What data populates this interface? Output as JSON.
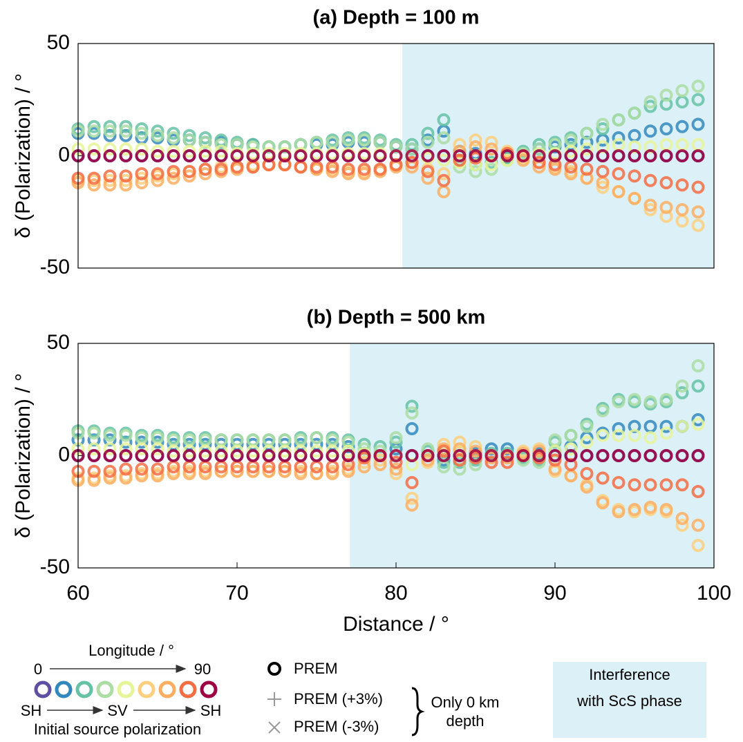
{
  "chart_data": [
    {
      "type": "scatter",
      "title": "(a) Depth = 100 m",
      "ylabel": "δ (Polarization) / °",
      "xlim": [
        60,
        100
      ],
      "ylim": [
        -50,
        50
      ],
      "yticks": [
        -50,
        0,
        50
      ],
      "shade": [
        80.4,
        100
      ],
      "shade_color": "#dcf1f7",
      "x": [
        60,
        61,
        62,
        63,
        64,
        65,
        66,
        67,
        68,
        69,
        70,
        71,
        72,
        73,
        74,
        75,
        76,
        77,
        78,
        79,
        80,
        81,
        82,
        83,
        84,
        85,
        86,
        87,
        88,
        89,
        90,
        91,
        92,
        93,
        94,
        95,
        96,
        97,
        98,
        99
      ],
      "series": [
        {
          "color": "#5e4fa2",
          "values": [
            0,
            0,
            0,
            0,
            0,
            0,
            0,
            0,
            0,
            0,
            0,
            0,
            0,
            0,
            0,
            0,
            0,
            0,
            0,
            0,
            0,
            0,
            0,
            0,
            0,
            0,
            0,
            0,
            0,
            0,
            0,
            0,
            0,
            0,
            0,
            0,
            0,
            0,
            0,
            0
          ]
        },
        {
          "color": "#3288bd",
          "values": [
            10,
            10,
            9,
            9,
            8,
            8,
            7,
            7,
            6,
            6,
            5,
            5,
            4,
            4,
            5,
            5,
            5,
            6,
            6,
            6,
            4,
            3,
            7,
            11,
            2,
            1,
            0,
            -1,
            0,
            3,
            4,
            5,
            6,
            7,
            8,
            9,
            11,
            12,
            13,
            14
          ]
        },
        {
          "color": "#66c2a5",
          "values": [
            12,
            13,
            13,
            13,
            12,
            11,
            10,
            9,
            8,
            7,
            6,
            5,
            4,
            4,
            5,
            6,
            7,
            8,
            8,
            7,
            5,
            5,
            10,
            16,
            -2,
            -4,
            -3,
            -1,
            2,
            5,
            6,
            8,
            10,
            12,
            16,
            19,
            22,
            23,
            24,
            25
          ]
        },
        {
          "color": "#abdda4",
          "values": [
            11,
            11,
            11,
            11,
            10,
            9,
            8,
            7,
            6,
            5,
            5,
            4,
            4,
            4,
            5,
            6,
            6,
            7,
            7,
            6,
            4,
            3,
            6,
            8,
            -5,
            -7,
            -6,
            -2,
            1,
            3,
            5,
            7,
            10,
            14,
            16,
            19,
            24,
            27,
            29,
            31
          ]
        },
        {
          "color": "#e6f598",
          "values": [
            3,
            3,
            3,
            3,
            3,
            2,
            2,
            2,
            2,
            2,
            1,
            1,
            1,
            1,
            1,
            1,
            1,
            1,
            1,
            1,
            0,
            0,
            -1,
            -2,
            -3,
            -4,
            -4,
            -2,
            0,
            1,
            1,
            2,
            3,
            4,
            5,
            4,
            4,
            5,
            5,
            5
          ]
        },
        {
          "color": "#fdcf7f",
          "values": [
            -11,
            -11,
            -11,
            -11,
            -10,
            -9,
            -8,
            -7,
            -6,
            -5,
            -5,
            -4,
            -4,
            -4,
            -5,
            -6,
            -6,
            -7,
            -7,
            -6,
            -4,
            -3,
            -6,
            -8,
            5,
            7,
            6,
            2,
            -1,
            -3,
            -5,
            -7,
            -10,
            -14,
            -16,
            -19,
            -24,
            -27,
            -29,
            -31
          ]
        },
        {
          "color": "#fdae61",
          "values": [
            -12,
            -13,
            -13,
            -13,
            -12,
            -11,
            -10,
            -9,
            -8,
            -7,
            -6,
            -5,
            -4,
            -4,
            -5,
            -6,
            -7,
            -8,
            -8,
            -7,
            -5,
            -5,
            -10,
            -16,
            2,
            4,
            3,
            1,
            -2,
            -5,
            -6,
            -8,
            -10,
            -12,
            -16,
            -19,
            -22,
            -23,
            -24,
            -25
          ]
        },
        {
          "color": "#f46d43",
          "values": [
            -10,
            -10,
            -9,
            -9,
            -8,
            -8,
            -7,
            -7,
            -6,
            -6,
            -5,
            -5,
            -4,
            -4,
            -5,
            -5,
            -5,
            -6,
            -6,
            -6,
            -4,
            -3,
            -7,
            -11,
            -2,
            -1,
            0,
            1,
            0,
            -3,
            -4,
            -5,
            -6,
            -7,
            -8,
            -9,
            -11,
            -12,
            -13,
            -14
          ]
        },
        {
          "color": "#9e0142",
          "values": [
            0,
            0,
            0,
            0,
            0,
            0,
            0,
            0,
            0,
            0,
            0,
            0,
            0,
            0,
            0,
            0,
            0,
            0,
            0,
            0,
            0,
            0,
            0,
            0,
            0,
            0,
            0,
            0,
            0,
            0,
            0,
            0,
            0,
            0,
            0,
            0,
            0,
            0,
            0,
            0
          ]
        }
      ]
    },
    {
      "type": "scatter",
      "title": "(b) Depth = 500 km",
      "ylabel": "δ (Polarization) / °",
      "xlabel": "Distance / °",
      "xlim": [
        60,
        100
      ],
      "ylim": [
        -50,
        50
      ],
      "xticks": [
        60,
        70,
        80,
        90,
        100
      ],
      "yticks": [
        -50,
        0,
        50
      ],
      "shade": [
        77.1,
        100
      ],
      "shade_color": "#dcf1f7",
      "x": [
        60,
        61,
        62,
        63,
        64,
        65,
        66,
        67,
        68,
        69,
        70,
        71,
        72,
        73,
        74,
        75,
        76,
        77,
        78,
        79,
        80,
        81,
        82,
        83,
        84,
        85,
        86,
        87,
        88,
        89,
        90,
        91,
        92,
        93,
        94,
        95,
        96,
        97,
        98,
        99
      ],
      "series": [
        {
          "color": "#5e4fa2",
          "values": [
            0,
            0,
            0,
            0,
            0,
            0,
            0,
            0,
            0,
            0,
            0,
            0,
            0,
            0,
            0,
            0,
            0,
            0,
            0,
            0,
            0,
            0,
            0,
            0,
            0,
            0,
            0,
            0,
            0,
            0,
            0,
            0,
            0,
            0,
            0,
            0,
            0,
            0,
            0,
            0
          ]
        },
        {
          "color": "#3288bd",
          "values": [
            7,
            7,
            7,
            6,
            6,
            6,
            5,
            5,
            5,
            5,
            5,
            5,
            5,
            5,
            5,
            5,
            5,
            4,
            1,
            0,
            3,
            12,
            0,
            -2,
            2,
            1,
            3,
            3,
            0,
            1,
            2,
            4,
            8,
            10,
            12,
            13,
            13,
            13,
            13,
            16
          ]
        },
        {
          "color": "#66c2a5",
          "values": [
            11,
            11,
            10,
            10,
            9,
            9,
            8,
            8,
            8,
            7,
            7,
            7,
            7,
            7,
            8,
            8,
            8,
            7,
            5,
            4,
            6,
            22,
            2,
            -3,
            -3,
            -2,
            1,
            1,
            -1,
            -2,
            6,
            9,
            14,
            21,
            25,
            24,
            23,
            24,
            28,
            31
          ]
        },
        {
          "color": "#abdda4",
          "values": [
            10,
            10,
            9,
            9,
            8,
            8,
            7,
            7,
            7,
            7,
            7,
            7,
            7,
            7,
            7,
            8,
            7,
            6,
            3,
            2,
            8,
            19,
            3,
            -5,
            -6,
            -4,
            0,
            0,
            -2,
            -3,
            7,
            9,
            13,
            20,
            24,
            25,
            24,
            25,
            31,
            40
          ]
        },
        {
          "color": "#e6f598",
          "values": [
            3,
            3,
            3,
            3,
            3,
            3,
            2,
            2,
            2,
            2,
            2,
            2,
            2,
            2,
            2,
            2,
            2,
            2,
            1,
            0,
            0,
            -4,
            0,
            2,
            2,
            0,
            0,
            0,
            0,
            0,
            2,
            3,
            6,
            9,
            9,
            9,
            8,
            10,
            13,
            14
          ]
        },
        {
          "color": "#fdcf7f",
          "values": [
            -10,
            -10,
            -9,
            -9,
            -8,
            -8,
            -7,
            -7,
            -7,
            -7,
            -7,
            -7,
            -7,
            -7,
            -7,
            -8,
            -7,
            -6,
            -3,
            -2,
            -8,
            -19,
            -3,
            5,
            6,
            4,
            0,
            0,
            2,
            3,
            -7,
            -9,
            -13,
            -20,
            -24,
            -25,
            -24,
            -25,
            -31,
            -40
          ]
        },
        {
          "color": "#fdae61",
          "values": [
            -11,
            -11,
            -10,
            -10,
            -9,
            -9,
            -8,
            -8,
            -8,
            -7,
            -7,
            -7,
            -7,
            -7,
            -8,
            -8,
            -8,
            -7,
            -5,
            -4,
            -6,
            -22,
            -2,
            3,
            3,
            2,
            -1,
            -1,
            1,
            2,
            -6,
            -9,
            -14,
            -21,
            -25,
            -24,
            -23,
            -24,
            -28,
            -31
          ]
        },
        {
          "color": "#f46d43",
          "values": [
            -7,
            -7,
            -7,
            -6,
            -6,
            -6,
            -5,
            -5,
            -5,
            -5,
            -5,
            -5,
            -5,
            -5,
            -5,
            -5,
            -5,
            -4,
            -1,
            0,
            -3,
            -12,
            0,
            2,
            -2,
            -1,
            -3,
            -3,
            0,
            -1,
            -2,
            -4,
            -8,
            -10,
            -12,
            -13,
            -13,
            -13,
            -13,
            -16
          ]
        },
        {
          "color": "#9e0142",
          "values": [
            0,
            0,
            0,
            0,
            0,
            0,
            0,
            0,
            0,
            0,
            0,
            0,
            0,
            0,
            0,
            0,
            0,
            0,
            0,
            0,
            0,
            0,
            0,
            0,
            0,
            0,
            0,
            0,
            0,
            0,
            0,
            0,
            0,
            0,
            0,
            0,
            0,
            0,
            0,
            0
          ]
        }
      ]
    }
  ],
  "legend": {
    "longitude": "Longitude / °",
    "lon_start": "0",
    "lon_end": "90",
    "sh1": "SH",
    "sv": "SV",
    "sh2": "SH",
    "caption": "Initial source polarization",
    "prem": "PREM",
    "prem_plus": "PREM (+3%)",
    "prem_minus": "PREM (-3%)",
    "note_line1": "Only 0 km",
    "note_line2": "depth",
    "box_line1": "Interference",
    "box_line2": "with ScS phase"
  }
}
